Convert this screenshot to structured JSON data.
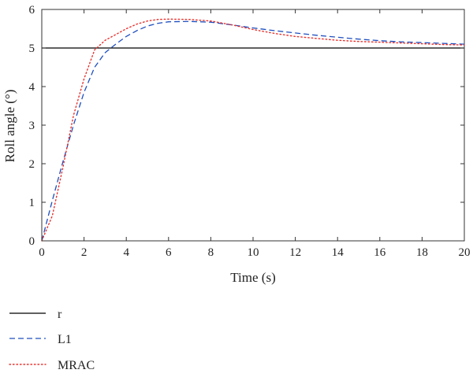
{
  "chart_data": {
    "type": "line",
    "xlabel": "Time (s)",
    "ylabel": "Roll angle (°)",
    "xlim": [
      0,
      20
    ],
    "ylim": [
      0,
      6
    ],
    "xticks": [
      0,
      2,
      4,
      6,
      8,
      10,
      12,
      14,
      16,
      18,
      20
    ],
    "yticks": [
      0,
      1,
      2,
      3,
      4,
      5,
      6
    ],
    "grid": false,
    "legend_position": "below",
    "series": [
      {
        "name": "r",
        "color": "#000000",
        "style": "solid",
        "x": [
          0,
          20
        ],
        "y": [
          5,
          5
        ]
      },
      {
        "name": "L1",
        "color": "#1f4fbf",
        "style": "dashed",
        "x": [
          0,
          0.5,
          1,
          1.5,
          2,
          2.5,
          3,
          3.5,
          4,
          4.5,
          5,
          5.5,
          6,
          7,
          8,
          9,
          10,
          11,
          12,
          13,
          14,
          15,
          16,
          17,
          18,
          19,
          20
        ],
        "y": [
          0,
          1.05,
          2.05,
          3.0,
          3.85,
          4.5,
          4.88,
          5.1,
          5.3,
          5.45,
          5.57,
          5.64,
          5.68,
          5.69,
          5.67,
          5.6,
          5.52,
          5.45,
          5.39,
          5.33,
          5.28,
          5.23,
          5.19,
          5.16,
          5.14,
          5.12,
          5.1
        ]
      },
      {
        "name": "MRAC",
        "color": "#e8322e",
        "style": "dotted",
        "x": [
          0,
          0.5,
          1,
          1.5,
          2,
          2.5,
          3,
          3.5,
          4,
          4.5,
          5,
          5.5,
          6,
          7,
          8,
          9,
          10,
          11,
          12,
          13,
          14,
          15,
          16,
          17,
          18,
          19,
          20
        ],
        "y": [
          0,
          0.65,
          1.9,
          3.25,
          4.2,
          4.95,
          5.2,
          5.35,
          5.5,
          5.62,
          5.7,
          5.74,
          5.75,
          5.74,
          5.7,
          5.6,
          5.48,
          5.38,
          5.3,
          5.25,
          5.2,
          5.17,
          5.15,
          5.13,
          5.11,
          5.09,
          5.08
        ]
      }
    ]
  }
}
